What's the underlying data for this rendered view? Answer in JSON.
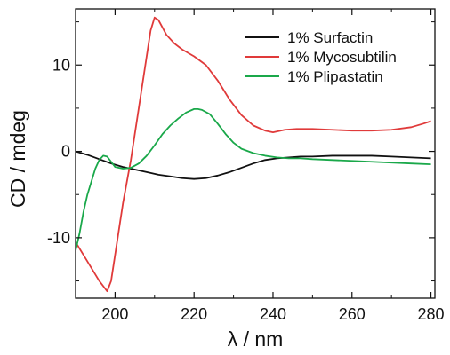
{
  "chart_data": {
    "type": "line",
    "title": "",
    "xlabel": "λ / nm",
    "ylabel": "CD / mdeg",
    "xlim": [
      190,
      281
    ],
    "ylim": [
      -17,
      16.5
    ],
    "x_ticks": [
      200,
      220,
      240,
      260,
      280
    ],
    "x_tick_labels": [
      "200",
      "220",
      "240",
      "260",
      "280"
    ],
    "y_ticks": [
      -10,
      0,
      10
    ],
    "y_tick_labels": [
      "-10",
      "0",
      "10"
    ],
    "grid": false,
    "legend_position": "top-right",
    "series": [
      {
        "name": "1% Surfactin",
        "color": "#111111",
        "x": [
          190,
          193,
          196,
          199,
          202,
          205,
          208,
          211,
          214,
          217,
          220,
          223,
          226,
          229,
          232,
          235,
          238,
          241,
          244,
          247,
          250,
          255,
          260,
          265,
          270,
          275,
          280
        ],
        "y": [
          0,
          -0.4,
          -0.9,
          -1.4,
          -1.8,
          -2.1,
          -2.4,
          -2.7,
          -2.9,
          -3.1,
          -3.2,
          -3.1,
          -2.8,
          -2.4,
          -1.9,
          -1.4,
          -1.0,
          -0.8,
          -0.7,
          -0.6,
          -0.6,
          -0.5,
          -0.5,
          -0.5,
          -0.6,
          -0.7,
          -0.8
        ]
      },
      {
        "name": "1% Mycosubtilin",
        "color": "#e03a3a",
        "x": [
          190,
          192,
          194,
          196,
          197,
          198,
          199,
          200,
          202,
          204,
          206,
          208,
          209,
          210,
          211,
          213,
          215,
          217,
          220,
          223,
          226,
          229,
          232,
          235,
          238,
          240,
          243,
          246,
          250,
          255,
          260,
          265,
          270,
          275,
          278,
          280
        ],
        "y": [
          -10.5,
          -12,
          -13.5,
          -15,
          -15.6,
          -16.2,
          -15,
          -12,
          -6,
          -1,
          5,
          11,
          14,
          15.5,
          15.2,
          13.5,
          12.5,
          11.8,
          11,
          10,
          8.2,
          6,
          4.2,
          3,
          2.4,
          2.2,
          2.5,
          2.6,
          2.6,
          2.5,
          2.4,
          2.4,
          2.5,
          2.8,
          3.2,
          3.5
        ]
      },
      {
        "name": "1% Plipastatin",
        "color": "#1aa84a",
        "x": [
          190,
          191,
          192,
          193,
          194,
          195,
          196,
          197,
          198,
          199,
          200,
          202,
          204,
          206,
          208,
          210,
          212,
          214,
          216,
          218,
          220,
          221,
          222,
          224,
          226,
          228,
          230,
          232,
          235,
          238,
          241,
          244,
          247,
          250,
          255,
          260,
          265,
          270,
          275,
          280
        ],
        "y": [
          -11.5,
          -9.5,
          -7,
          -5,
          -3.5,
          -2,
          -1,
          -0.5,
          -0.6,
          -1.2,
          -1.8,
          -2,
          -1.9,
          -1.4,
          -0.5,
          0.7,
          2,
          3,
          3.8,
          4.5,
          4.9,
          4.9,
          4.8,
          4.3,
          3.2,
          2,
          1,
          0.3,
          -0.2,
          -0.5,
          -0.7,
          -0.8,
          -0.8,
          -0.9,
          -1,
          -1.1,
          -1.2,
          -1.3,
          -1.4,
          -1.5
        ]
      }
    ]
  }
}
